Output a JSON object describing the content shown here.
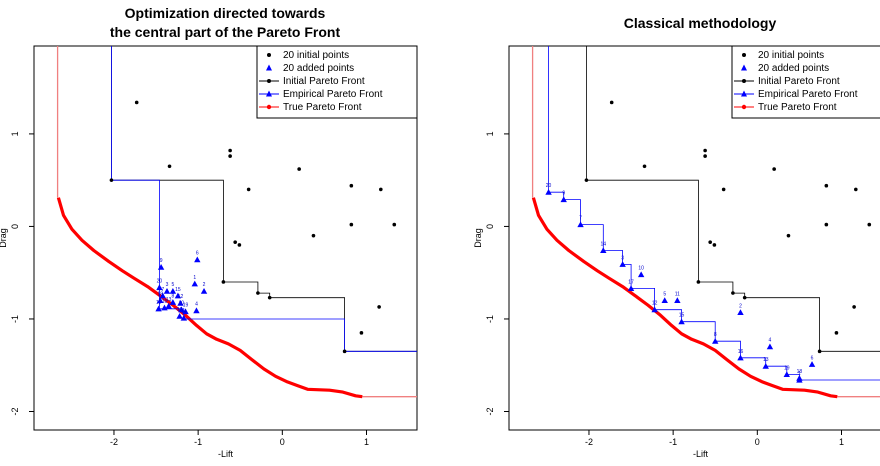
{
  "colors": {
    "initial": "#000000",
    "added": "#0000ff",
    "initial_front": "#000000",
    "empirical_front": "#0000ff",
    "true_front": "#ff0000",
    "true_front_light": "#f08080"
  },
  "chart_data": [
    {
      "type": "scatter",
      "title_lines": [
        "Optimization directed towards",
        "the central part of the Pareto Front"
      ],
      "xlabel": "-Lift",
      "ylabel": "Drag",
      "xlim": [
        -2.95,
        1.6
      ],
      "ylim": [
        -2.2,
        1.95
      ],
      "xticks": [
        -2,
        -1,
        0,
        1
      ],
      "yticks": [
        -2,
        -1,
        0,
        1
      ],
      "grid": false,
      "legend_position": "top-right",
      "legend": [
        "20 initial points",
        "20 added points",
        "Initial Pareto Front",
        "Empirical Pareto Front",
        "True Pareto Front"
      ],
      "initial_points": [
        [
          -1.73,
          1.34
        ],
        [
          -0.62,
          0.82
        ],
        [
          -0.62,
          0.76
        ],
        [
          -1.34,
          0.65
        ],
        [
          0.2,
          0.62
        ],
        [
          -0.4,
          0.4
        ],
        [
          0.82,
          0.44
        ],
        [
          1.17,
          0.4
        ],
        [
          -2.03,
          0.5
        ],
        [
          -0.56,
          -0.17
        ],
        [
          -0.51,
          -0.2
        ],
        [
          0.37,
          -0.1
        ],
        [
          0.82,
          0.02
        ],
        [
          1.33,
          0.02
        ],
        [
          -0.7,
          -0.6
        ],
        [
          -0.29,
          -0.72
        ],
        [
          -0.15,
          -0.77
        ],
        [
          1.15,
          -0.87
        ],
        [
          0.94,
          -1.15
        ],
        [
          0.74,
          -1.35
        ]
      ],
      "added_points": [
        {
          "x": -1.44,
          "y": -0.44,
          "label": "9"
        },
        {
          "x": -1.46,
          "y": -0.66,
          "label": "20"
        },
        {
          "x": -1.37,
          "y": -0.7,
          "label": "3"
        },
        {
          "x": -1.3,
          "y": -0.7,
          "label": "5"
        },
        {
          "x": -1.42,
          "y": -0.75,
          "label": "7"
        },
        {
          "x": -1.24,
          "y": -0.75,
          "label": "15"
        },
        {
          "x": -1.45,
          "y": -0.8,
          "label": "18"
        },
        {
          "x": -1.3,
          "y": -0.82,
          "label": "8"
        },
        {
          "x": -1.21,
          "y": -0.83,
          "label": "12"
        },
        {
          "x": -1.35,
          "y": -0.86,
          "label": "13"
        },
        {
          "x": -1.2,
          "y": -0.9,
          "label": "10"
        },
        {
          "x": -1.15,
          "y": -0.92,
          "label": "19"
        },
        {
          "x": -1.47,
          "y": -0.89,
          "label": "11"
        },
        {
          "x": -1.4,
          "y": -0.88,
          "label": "16"
        },
        {
          "x": -1.22,
          "y": -0.97,
          "label": "17"
        },
        {
          "x": -1.17,
          "y": -0.99,
          "label": "14"
        },
        {
          "x": -1.01,
          "y": -0.36,
          "label": "6"
        },
        {
          "x": -1.04,
          "y": -0.62,
          "label": "1"
        },
        {
          "x": -0.93,
          "y": -0.7,
          "label": "2"
        },
        {
          "x": -1.02,
          "y": -0.91,
          "label": "4"
        }
      ],
      "initial_front": [
        [
          -2.03,
          2.3
        ],
        [
          -2.03,
          0.5
        ],
        [
          -0.7,
          0.5
        ],
        [
          -0.7,
          -0.6
        ],
        [
          -0.29,
          -0.6
        ],
        [
          -0.29,
          -0.72
        ],
        [
          -0.15,
          -0.72
        ],
        [
          -0.15,
          -0.77
        ],
        [
          0.74,
          -0.77
        ],
        [
          0.74,
          -1.35
        ],
        [
          1.7,
          -1.35
        ]
      ],
      "empirical_front": [
        [
          -2.03,
          2.3
        ],
        [
          -2.03,
          0.5
        ],
        [
          -1.46,
          0.5
        ],
        [
          -1.46,
          -0.89
        ],
        [
          -1.17,
          -0.89
        ],
        [
          -1.17,
          -1.0
        ],
        [
          0.74,
          -1.0
        ],
        [
          0.74,
          -1.35
        ],
        [
          1.7,
          -1.35
        ]
      ],
      "true_front": [
        [
          -2.66,
          0.31
        ],
        [
          -2.6,
          0.12
        ],
        [
          -2.5,
          -0.03
        ],
        [
          -2.38,
          -0.15
        ],
        [
          -2.24,
          -0.26
        ],
        [
          -2.06,
          -0.38
        ],
        [
          -1.9,
          -0.48
        ],
        [
          -1.76,
          -0.56
        ],
        [
          -1.6,
          -0.65
        ],
        [
          -1.45,
          -0.75
        ],
        [
          -1.3,
          -0.85
        ],
        [
          -1.15,
          -0.96
        ],
        [
          -1.02,
          -1.07
        ],
        [
          -0.9,
          -1.16
        ],
        [
          -0.78,
          -1.22
        ],
        [
          -0.64,
          -1.27
        ],
        [
          -0.5,
          -1.34
        ],
        [
          -0.36,
          -1.44
        ],
        [
          -0.22,
          -1.54
        ],
        [
          -0.08,
          -1.62
        ],
        [
          0.06,
          -1.68
        ],
        [
          0.18,
          -1.72
        ],
        [
          0.3,
          -1.76
        ],
        [
          0.56,
          -1.77
        ],
        [
          0.72,
          -1.79
        ],
        [
          0.87,
          -1.83
        ],
        [
          0.95,
          -1.84
        ]
      ],
      "true_front_ext": [
        [
          -2.67,
          2.3
        ],
        [
          -2.67,
          0.31
        ]
      ],
      "true_front_ext2": [
        [
          0.95,
          -1.84
        ],
        [
          1.7,
          -1.84
        ]
      ]
    },
    {
      "type": "scatter",
      "title_lines": [
        "Classical methodology"
      ],
      "xlabel": "-Lift",
      "ylabel": "Drag",
      "xlim": [
        -2.95,
        1.6
      ],
      "ylim": [
        -2.2,
        1.95
      ],
      "xticks": [
        -2,
        -1,
        0,
        1
      ],
      "yticks": [
        -2,
        -1,
        0,
        1
      ],
      "grid": false,
      "legend_position": "top-right",
      "legend": [
        "20 initial points",
        "20 added points",
        "Initial Pareto Front",
        "Empirical Pareto Front",
        "True Pareto Front"
      ],
      "initial_points": [
        [
          -1.73,
          1.34
        ],
        [
          -0.62,
          0.82
        ],
        [
          -0.62,
          0.76
        ],
        [
          -1.34,
          0.65
        ],
        [
          0.2,
          0.62
        ],
        [
          -0.4,
          0.4
        ],
        [
          0.82,
          0.44
        ],
        [
          1.17,
          0.4
        ],
        [
          -2.03,
          0.5
        ],
        [
          -0.56,
          -0.17
        ],
        [
          -0.51,
          -0.2
        ],
        [
          0.37,
          -0.1
        ],
        [
          0.82,
          0.02
        ],
        [
          1.33,
          0.02
        ],
        [
          -0.7,
          -0.6
        ],
        [
          -0.29,
          -0.72
        ],
        [
          -0.15,
          -0.77
        ],
        [
          1.15,
          -0.87
        ],
        [
          0.94,
          -1.15
        ],
        [
          0.74,
          -1.35
        ]
      ],
      "added_points": [
        {
          "x": -2.48,
          "y": 0.37,
          "label": "20"
        },
        {
          "x": -2.3,
          "y": 0.29,
          "label": "9"
        },
        {
          "x": -2.1,
          "y": 0.02,
          "label": "7"
        },
        {
          "x": -1.83,
          "y": -0.26,
          "label": "14"
        },
        {
          "x": -1.6,
          "y": -0.41,
          "label": "3"
        },
        {
          "x": -1.38,
          "y": -0.52,
          "label": "10"
        },
        {
          "x": -1.5,
          "y": -0.67,
          "label": "17"
        },
        {
          "x": -1.1,
          "y": -0.8,
          "label": "5"
        },
        {
          "x": -0.95,
          "y": -0.8,
          "label": "11"
        },
        {
          "x": -1.22,
          "y": -0.9,
          "label": "12"
        },
        {
          "x": -0.9,
          "y": -1.03,
          "label": "15"
        },
        {
          "x": -0.2,
          "y": -0.93,
          "label": "2"
        },
        {
          "x": -0.5,
          "y": -1.24,
          "label": "8"
        },
        {
          "x": 0.15,
          "y": -1.3,
          "label": "4"
        },
        {
          "x": -0.2,
          "y": -1.42,
          "label": "16"
        },
        {
          "x": 0.1,
          "y": -1.51,
          "label": "13"
        },
        {
          "x": 0.35,
          "y": -1.6,
          "label": "19"
        },
        {
          "x": 0.5,
          "y": -1.64,
          "label": "18"
        },
        {
          "x": 0.65,
          "y": -1.49,
          "label": "6"
        },
        {
          "x": 0.5,
          "y": -1.66,
          "label": "1"
        }
      ],
      "initial_front": [
        [
          -2.03,
          2.3
        ],
        [
          -2.03,
          0.5
        ],
        [
          -0.7,
          0.5
        ],
        [
          -0.7,
          -0.6
        ],
        [
          -0.29,
          -0.6
        ],
        [
          -0.29,
          -0.72
        ],
        [
          -0.15,
          -0.72
        ],
        [
          -0.15,
          -0.77
        ],
        [
          0.74,
          -0.77
        ],
        [
          0.74,
          -1.35
        ],
        [
          1.7,
          -1.35
        ]
      ],
      "empirical_front": [
        [
          -2.48,
          2.3
        ],
        [
          -2.48,
          0.37
        ],
        [
          -2.3,
          0.37
        ],
        [
          -2.3,
          0.29
        ],
        [
          -2.1,
          0.29
        ],
        [
          -2.1,
          0.02
        ],
        [
          -1.83,
          0.02
        ],
        [
          -1.83,
          -0.26
        ],
        [
          -1.6,
          -0.26
        ],
        [
          -1.6,
          -0.41
        ],
        [
          -1.5,
          -0.41
        ],
        [
          -1.5,
          -0.67
        ],
        [
          -1.22,
          -0.67
        ],
        [
          -1.22,
          -0.9
        ],
        [
          -0.9,
          -0.9
        ],
        [
          -0.9,
          -1.03
        ],
        [
          -0.5,
          -1.03
        ],
        [
          -0.5,
          -1.24
        ],
        [
          -0.2,
          -1.24
        ],
        [
          -0.2,
          -1.42
        ],
        [
          0.1,
          -1.42
        ],
        [
          0.1,
          -1.51
        ],
        [
          0.35,
          -1.51
        ],
        [
          0.35,
          -1.6
        ],
        [
          0.5,
          -1.6
        ],
        [
          0.5,
          -1.66
        ],
        [
          1.7,
          -1.66
        ]
      ],
      "true_front": [
        [
          -2.66,
          0.31
        ],
        [
          -2.6,
          0.12
        ],
        [
          -2.5,
          -0.03
        ],
        [
          -2.38,
          -0.15
        ],
        [
          -2.24,
          -0.26
        ],
        [
          -2.06,
          -0.38
        ],
        [
          -1.9,
          -0.48
        ],
        [
          -1.76,
          -0.56
        ],
        [
          -1.6,
          -0.65
        ],
        [
          -1.45,
          -0.75
        ],
        [
          -1.3,
          -0.85
        ],
        [
          -1.15,
          -0.96
        ],
        [
          -1.02,
          -1.07
        ],
        [
          -0.9,
          -1.16
        ],
        [
          -0.78,
          -1.22
        ],
        [
          -0.64,
          -1.27
        ],
        [
          -0.5,
          -1.34
        ],
        [
          -0.36,
          -1.44
        ],
        [
          -0.22,
          -1.54
        ],
        [
          -0.08,
          -1.62
        ],
        [
          0.06,
          -1.68
        ],
        [
          0.18,
          -1.72
        ],
        [
          0.3,
          -1.76
        ],
        [
          0.56,
          -1.77
        ],
        [
          0.72,
          -1.79
        ],
        [
          0.87,
          -1.83
        ],
        [
          0.95,
          -1.84
        ]
      ],
      "true_front_ext": [
        [
          -2.67,
          2.3
        ],
        [
          -2.67,
          0.31
        ]
      ],
      "true_front_ext2": [
        [
          0.95,
          -1.84
        ],
        [
          1.7,
          -1.84
        ]
      ]
    }
  ]
}
